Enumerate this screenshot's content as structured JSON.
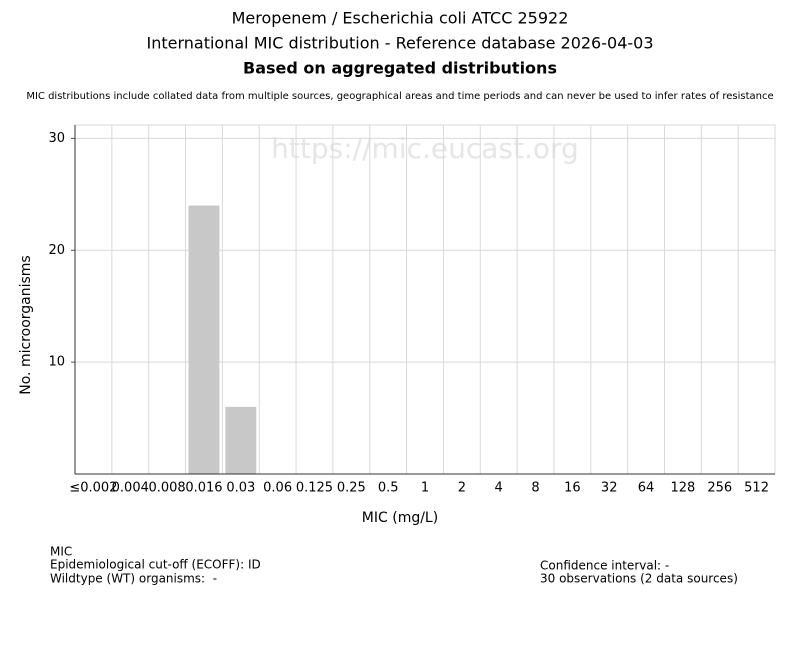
{
  "chart_data": {
    "type": "bar",
    "title": "Meropenem / Escherichia coli ATCC 25922",
    "subtitle": "International MIC distribution - Reference database 2026-04-03",
    "heading": "Based on aggregated distributions",
    "note": "MIC distributions include collated data from multiple sources, geographical areas and time periods and can never be used to infer rates of resistance",
    "watermark": "https://mic.eucast.org",
    "x_label": "MIC (mg/L)",
    "y_label": "No. microorganisms",
    "categories": [
      "≤0.002",
      "0.004",
      "0.008",
      "0.016",
      "0.03",
      "0.06",
      "0.125",
      "0.25",
      "0.5",
      "1",
      "2",
      "4",
      "8",
      "16",
      "32",
      "64",
      "128",
      "256",
      "512"
    ],
    "values": [
      0,
      0,
      0,
      24,
      6,
      0,
      0,
      0,
      0,
      0,
      0,
      0,
      0,
      0,
      0,
      0,
      0,
      0,
      0
    ],
    "color": "#c8c8c8",
    "ylim": [
      0,
      31.2
    ],
    "yticks": [
      10,
      20,
      30
    ],
    "grid": true,
    "footer_left": [
      "MIC",
      "Epidemiological cut-off (ECOFF): ID",
      "Wildtype (WT) organisms:  -"
    ],
    "footer_right": [
      "Confidence interval: -",
      "30 observations (2 data sources)"
    ]
  }
}
